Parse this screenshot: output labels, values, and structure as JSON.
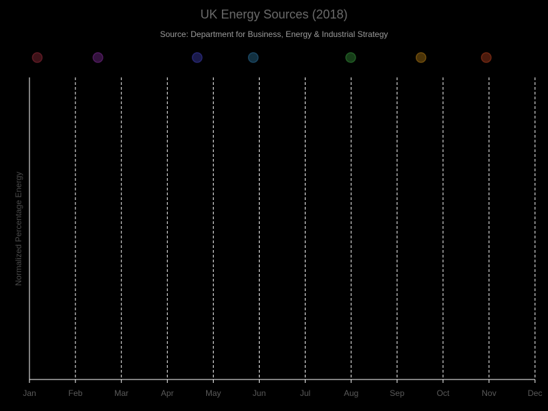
{
  "chart_data": {
    "type": "area",
    "title": "UK Energy Sources (2018)",
    "subtitle": "Source: Department for Business, Energy & Industrial Strategy",
    "xlabel": "",
    "ylabel": "Normalized Percentage Energy",
    "x_ticks": [
      "Jan",
      "Feb",
      "Mar",
      "Apr",
      "May",
      "Jun",
      "Jul",
      "Aug",
      "Sep",
      "Oct",
      "Nov",
      "Dec"
    ],
    "grid": true,
    "legend_placement": "top",
    "legend_markers": [
      {
        "x": "Jan",
        "offset": 0.17,
        "color": "#3d1218",
        "stroke": "#5e1a24"
      },
      {
        "x": "Feb",
        "offset": 0.49,
        "color": "#33123d",
        "stroke": "#4f1a5e"
      },
      {
        "x": "Apr",
        "offset": 0.65,
        "color": "#1a1a4a",
        "stroke": "#262670"
      },
      {
        "x": "May",
        "offset": 0.87,
        "color": "#123040",
        "stroke": "#1a4560"
      },
      {
        "x": "Jul",
        "offset": 0.99,
        "color": "#163d18",
        "stroke": "#215c24"
      },
      {
        "x": "Sep",
        "offset": 0.52,
        "color": "#4a3308",
        "stroke": "#6e4c0c"
      },
      {
        "x": "Oct",
        "offset": 0.94,
        "color": "#4a1a0c",
        "stroke": "#6e2612"
      }
    ],
    "series": []
  }
}
